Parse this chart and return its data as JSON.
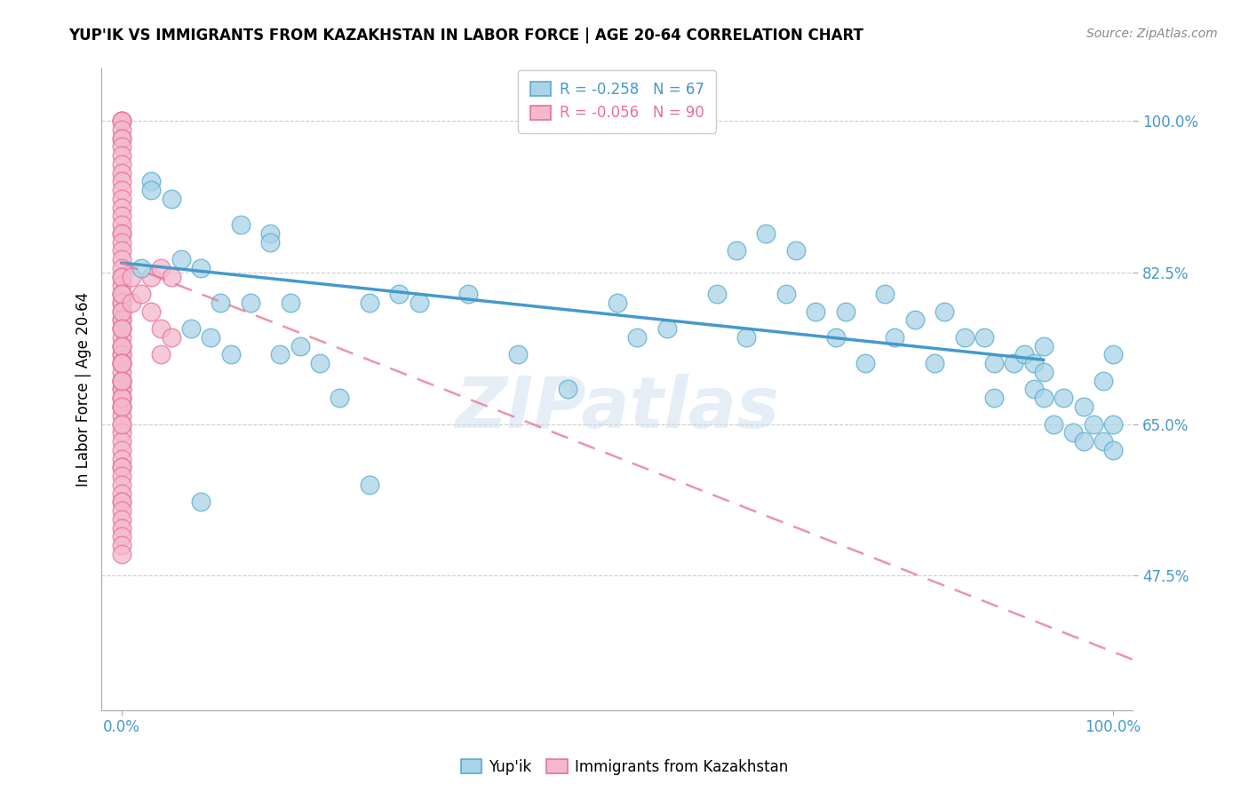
{
  "title": "YUP'IK VS IMMIGRANTS FROM KAZAKHSTAN IN LABOR FORCE | AGE 20-64 CORRELATION CHART",
  "source": "Source: ZipAtlas.com",
  "ylabel": "In Labor Force | Age 20-64",
  "xlim": [
    -0.02,
    1.02
  ],
  "ylim": [
    0.32,
    1.06
  ],
  "ytick_labels": [
    "47.5%",
    "65.0%",
    "82.5%",
    "100.0%"
  ],
  "ytick_values": [
    0.475,
    0.65,
    0.825,
    1.0
  ],
  "xtick_labels": [
    "0.0%",
    "100.0%"
  ],
  "xtick_values": [
    0.0,
    1.0
  ],
  "legend_r1_val": "-0.258",
  "legend_n1_val": "67",
  "legend_r2_val": "-0.056",
  "legend_n2_val": "90",
  "color_blue_fill": "#a8d4e8",
  "color_blue_edge": "#5aabcc",
  "color_pink_fill": "#f4b8cc",
  "color_pink_edge": "#e87099",
  "color_line_blue": "#4499cc",
  "color_line_pink": "#e87898",
  "watermark": "ZIPatlas",
  "blue_scatter_x": [
    0.02,
    0.03,
    0.03,
    0.05,
    0.06,
    0.07,
    0.08,
    0.09,
    0.1,
    0.11,
    0.12,
    0.13,
    0.15,
    0.15,
    0.16,
    0.17,
    0.18,
    0.2,
    0.22,
    0.25,
    0.28,
    0.3,
    0.35,
    0.4,
    0.45,
    0.5,
    0.52,
    0.55,
    0.6,
    0.62,
    0.63,
    0.65,
    0.67,
    0.68,
    0.7,
    0.72,
    0.73,
    0.75,
    0.77,
    0.78,
    0.8,
    0.82,
    0.83,
    0.85,
    0.87,
    0.88,
    0.88,
    0.9,
    0.91,
    0.92,
    0.92,
    0.93,
    0.93,
    0.93,
    0.94,
    0.95,
    0.96,
    0.97,
    0.97,
    0.98,
    0.99,
    0.99,
    1.0,
    1.0,
    1.0,
    0.08,
    0.25
  ],
  "blue_scatter_y": [
    0.83,
    0.93,
    0.92,
    0.91,
    0.84,
    0.76,
    0.83,
    0.75,
    0.79,
    0.73,
    0.88,
    0.79,
    0.87,
    0.86,
    0.73,
    0.79,
    0.74,
    0.72,
    0.68,
    0.79,
    0.8,
    0.79,
    0.8,
    0.73,
    0.69,
    0.79,
    0.75,
    0.76,
    0.8,
    0.85,
    0.75,
    0.87,
    0.8,
    0.85,
    0.78,
    0.75,
    0.78,
    0.72,
    0.8,
    0.75,
    0.77,
    0.72,
    0.78,
    0.75,
    0.75,
    0.68,
    0.72,
    0.72,
    0.73,
    0.72,
    0.69,
    0.68,
    0.71,
    0.74,
    0.65,
    0.68,
    0.64,
    0.67,
    0.63,
    0.65,
    0.7,
    0.63,
    0.73,
    0.65,
    0.62,
    0.56,
    0.58
  ],
  "pink_scatter_x": [
    0.0,
    0.0,
    0.0,
    0.0,
    0.0,
    0.0,
    0.0,
    0.0,
    0.0,
    0.0,
    0.0,
    0.0,
    0.0,
    0.0,
    0.0,
    0.0,
    0.0,
    0.0,
    0.0,
    0.0,
    0.0,
    0.0,
    0.0,
    0.0,
    0.0,
    0.0,
    0.0,
    0.0,
    0.0,
    0.0,
    0.0,
    0.0,
    0.0,
    0.0,
    0.0,
    0.0,
    0.0,
    0.0,
    0.0,
    0.0,
    0.0,
    0.0,
    0.0,
    0.0,
    0.0,
    0.0,
    0.0,
    0.0,
    0.0,
    0.0,
    0.0,
    0.0,
    0.0,
    0.0,
    0.0,
    0.0,
    0.0,
    0.0,
    0.0,
    0.0,
    0.0,
    0.0,
    0.0,
    0.0,
    0.0,
    0.0,
    0.0,
    0.0,
    0.0,
    0.0,
    0.0,
    0.0,
    0.0,
    0.0,
    0.0,
    0.0,
    0.0,
    0.0,
    0.0,
    0.0,
    0.01,
    0.01,
    0.02,
    0.03,
    0.03,
    0.04,
    0.04,
    0.04,
    0.05,
    0.05
  ],
  "pink_scatter_y": [
    1.0,
    1.0,
    1.0,
    0.99,
    0.98,
    0.98,
    0.97,
    0.96,
    0.95,
    0.94,
    0.93,
    0.92,
    0.91,
    0.9,
    0.89,
    0.88,
    0.87,
    0.87,
    0.86,
    0.85,
    0.84,
    0.83,
    0.82,
    0.81,
    0.8,
    0.8,
    0.79,
    0.78,
    0.77,
    0.76,
    0.75,
    0.74,
    0.73,
    0.72,
    0.71,
    0.7,
    0.69,
    0.68,
    0.67,
    0.66,
    0.65,
    0.64,
    0.63,
    0.62,
    0.61,
    0.6,
    0.6,
    0.59,
    0.58,
    0.57,
    0.56,
    0.56,
    0.55,
    0.54,
    0.53,
    0.52,
    0.51,
    0.5,
    0.79,
    0.77,
    0.76,
    0.74,
    0.73,
    0.72,
    0.7,
    0.69,
    0.68,
    0.67,
    0.82,
    0.8,
    0.78,
    0.76,
    0.74,
    0.72,
    0.7,
    0.68,
    0.67,
    0.65,
    0.72,
    0.7,
    0.82,
    0.79,
    0.8,
    0.82,
    0.78,
    0.83,
    0.76,
    0.73,
    0.82,
    0.75
  ],
  "blue_trend_x": [
    0.0,
    0.93
  ],
  "blue_trend_y": [
    0.836,
    0.724
  ],
  "pink_trend_x": [
    0.0,
    1.02
  ],
  "pink_trend_y": [
    0.836,
    0.378
  ]
}
